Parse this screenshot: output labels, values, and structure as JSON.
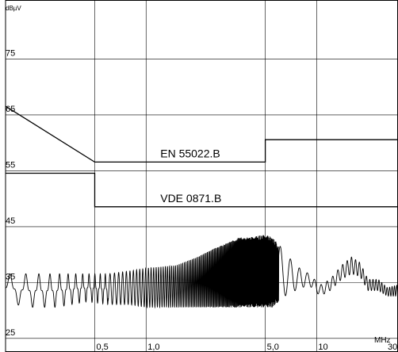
{
  "chart_data": {
    "type": "line",
    "title": "",
    "xlabel": "MHz",
    "ylabel": "dBµV",
    "x_scale": "log",
    "xlim": [
      0.15,
      30
    ],
    "ylim": [
      22,
      85
    ],
    "grid": true,
    "y_ticks": [
      25,
      35,
      45,
      55,
      65,
      75
    ],
    "x_ticks": [
      0.5,
      1.0,
      5.0,
      10,
      30
    ],
    "x_tick_labels": [
      "0,5",
      "1,0",
      "5,0",
      "10",
      "30"
    ],
    "y_unit_label": "dBµV",
    "x_unit_label": "MHz",
    "series": [
      {
        "name": "EN 55022.B",
        "style": "limit",
        "x": [
          0.15,
          0.5,
          0.5,
          5.0,
          5.0,
          30
        ],
        "y": [
          66,
          56,
          56,
          56,
          60,
          60
        ]
      },
      {
        "name": "VDE 0871.B",
        "style": "limit",
        "x": [
          0.15,
          0.5,
          0.5,
          30
        ],
        "y": [
          54,
          54,
          48,
          48
        ]
      },
      {
        "name": "",
        "style": "measurement",
        "x": [
          0.15,
          0.2,
          0.3,
          0.45,
          0.6,
          0.8,
          1.0,
          1.5,
          2.0,
          2.5,
          3.0,
          3.5,
          4.0,
          5.0,
          5.5,
          6.5,
          7.5,
          9.0,
          10.5,
          12.0,
          14.0,
          16.0,
          18.0,
          20.0,
          23.0,
          26.0,
          30
        ],
        "y_upper": [
          36,
          36,
          36,
          36,
          36,
          36.5,
          37,
          37.5,
          39,
          40.5,
          41.5,
          42.5,
          42.5,
          43,
          42.5,
          40,
          37.5,
          36,
          34,
          35,
          37.5,
          39,
          38,
          35,
          35,
          33.5,
          34
        ],
        "y_lower": [
          31,
          30,
          30,
          31,
          30.5,
          30.5,
          30,
          30,
          30,
          30,
          30,
          30,
          30,
          30,
          30,
          32,
          33,
          34,
          32,
          33,
          35,
          36,
          35.5,
          33,
          33,
          32,
          32
        ]
      }
    ],
    "annotations": [
      "EN 55022.B",
      "VDE 0871.B"
    ]
  }
}
